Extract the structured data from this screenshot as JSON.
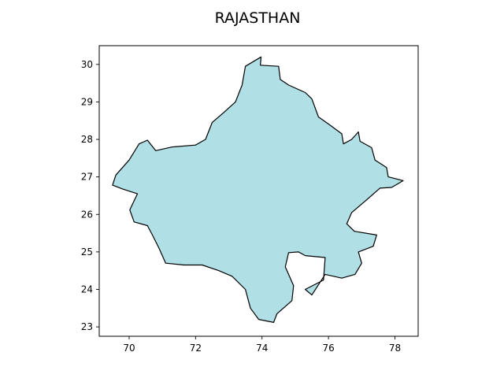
{
  "chart_data": {
    "type": "map",
    "title": "RAJASTHAN",
    "xlabel": "",
    "ylabel": "",
    "xlim": [
      69.1,
      78.7
    ],
    "ylim": [
      22.75,
      30.5
    ],
    "x_ticks": [
      70,
      72,
      74,
      76,
      78
    ],
    "y_ticks": [
      23,
      24,
      25,
      26,
      27,
      28,
      29,
      30
    ],
    "grid": false,
    "fill_color": "#b0e0e6",
    "edge_color": "#000000",
    "region": {
      "name": "RAJASTHAN",
      "boundary_lonlat": [
        [
          73.97,
          30.2
        ],
        [
          73.95,
          29.98
        ],
        [
          74.5,
          29.95
        ],
        [
          74.55,
          29.6
        ],
        [
          74.8,
          29.45
        ],
        [
          75.3,
          29.25
        ],
        [
          75.5,
          29.08
        ],
        [
          75.7,
          28.6
        ],
        [
          76.02,
          28.4
        ],
        [
          76.4,
          28.15
        ],
        [
          76.45,
          27.88
        ],
        [
          76.7,
          28.0
        ],
        [
          76.9,
          28.2
        ],
        [
          76.95,
          27.95
        ],
        [
          77.3,
          27.78
        ],
        [
          77.4,
          27.45
        ],
        [
          77.75,
          27.25
        ],
        [
          77.8,
          27.0
        ],
        [
          78.25,
          26.9
        ],
        [
          77.9,
          26.72
        ],
        [
          77.55,
          26.7
        ],
        [
          77.1,
          26.35
        ],
        [
          76.7,
          26.05
        ],
        [
          76.55,
          25.75
        ],
        [
          76.78,
          25.55
        ],
        [
          77.45,
          25.45
        ],
        [
          77.35,
          25.15
        ],
        [
          76.9,
          25.0
        ],
        [
          77.0,
          24.7
        ],
        [
          76.8,
          24.4
        ],
        [
          76.4,
          24.3
        ],
        [
          75.9,
          24.4
        ],
        [
          75.5,
          23.85
        ],
        [
          75.3,
          24.0
        ],
        [
          75.85,
          24.25
        ],
        [
          75.9,
          24.85
        ],
        [
          75.3,
          24.9
        ],
        [
          75.1,
          25.0
        ],
        [
          74.8,
          24.98
        ],
        [
          74.7,
          24.6
        ],
        [
          74.95,
          24.1
        ],
        [
          74.9,
          23.7
        ],
        [
          74.45,
          23.35
        ],
        [
          74.35,
          23.12
        ],
        [
          73.9,
          23.2
        ],
        [
          73.65,
          23.5
        ],
        [
          73.5,
          24.0
        ],
        [
          73.1,
          24.35
        ],
        [
          72.7,
          24.5
        ],
        [
          72.2,
          24.65
        ],
        [
          71.65,
          24.65
        ],
        [
          71.1,
          24.7
        ],
        [
          70.9,
          25.1
        ],
        [
          70.7,
          25.45
        ],
        [
          70.55,
          25.7
        ],
        [
          70.15,
          25.8
        ],
        [
          70.02,
          26.12
        ],
        [
          70.25,
          26.55
        ],
        [
          69.8,
          26.68
        ],
        [
          69.5,
          26.78
        ],
        [
          69.6,
          27.05
        ],
        [
          70.0,
          27.45
        ],
        [
          70.3,
          27.88
        ],
        [
          70.55,
          27.98
        ],
        [
          70.8,
          27.7
        ],
        [
          71.3,
          27.8
        ],
        [
          72.0,
          27.85
        ],
        [
          72.3,
          28.0
        ],
        [
          72.5,
          28.45
        ],
        [
          72.85,
          28.72
        ],
        [
          73.2,
          29.0
        ],
        [
          73.4,
          29.45
        ],
        [
          73.5,
          29.95
        ]
      ]
    }
  }
}
